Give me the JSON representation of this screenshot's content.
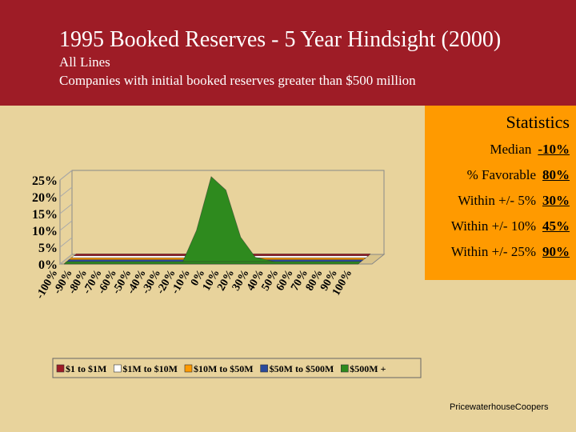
{
  "header": {
    "title": "1995 Booked Reserves - 5 Year Hindsight (2000)",
    "subtitle": "All Lines",
    "note": "Companies with initial booked reserves greater than $500 million"
  },
  "chart_data": {
    "type": "area",
    "categories": [
      "-100%",
      "-90%",
      "-80%",
      "-70%",
      "-60%",
      "-50%",
      "-40%",
      "-30%",
      "-20%",
      "-10%",
      "0%",
      "10%",
      "20%",
      "30%",
      "40%",
      "50%",
      "60%",
      "70%",
      "80%",
      "90%",
      "100%"
    ],
    "series": [
      {
        "name": "$1 to $1M",
        "color": "#9e1c26",
        "values": [
          0,
          0,
          0,
          0,
          0,
          0,
          0,
          0,
          0,
          0,
          0,
          0,
          0,
          0,
          0,
          0,
          0,
          0,
          0,
          0,
          0
        ]
      },
      {
        "name": "$1M to $10M",
        "color": "#ffffff",
        "values": [
          0,
          0,
          0,
          0,
          0,
          0,
          0,
          0,
          0,
          0,
          0,
          0,
          0,
          0,
          0,
          0,
          0,
          0,
          0,
          0,
          0
        ]
      },
      {
        "name": "$10M to $50M",
        "color": "#ff9a00",
        "values": [
          0,
          0,
          0,
          0,
          0,
          0,
          0,
          0,
          0,
          0,
          0,
          0,
          0,
          0,
          0,
          0,
          0,
          0,
          0,
          0,
          0
        ]
      },
      {
        "name": "$50M to $500M",
        "color": "#2a4a9c",
        "values": [
          0,
          0,
          0,
          0,
          0,
          0,
          0,
          0,
          0,
          0,
          0,
          0,
          0,
          0,
          0,
          0,
          0,
          0,
          0,
          0,
          0
        ]
      },
      {
        "name": "$500M +",
        "color": "#2e8a1e",
        "values": [
          0,
          0,
          0,
          0,
          0,
          0,
          0,
          0,
          0,
          10,
          26,
          22,
          8,
          2,
          1,
          0,
          0,
          0,
          0,
          0,
          0
        ]
      }
    ],
    "ylim": [
      0,
      25
    ],
    "yticks": [
      {
        "value": 0,
        "label": "0%"
      },
      {
        "value": 5,
        "label": "5%"
      },
      {
        "value": 10,
        "label": "10%"
      },
      {
        "value": 15,
        "label": "15%"
      },
      {
        "value": 20,
        "label": "20%"
      },
      {
        "value": 25,
        "label": "25%"
      }
    ]
  },
  "statistics": {
    "title": "Statistics",
    "rows": [
      [
        "Median",
        "-10%"
      ],
      [
        "% Favorable",
        "80%"
      ],
      [
        "Within +/- 5%",
        "30%"
      ],
      [
        "Within +/- 10%",
        "45%"
      ],
      [
        "Within +/- 25%",
        "90%"
      ]
    ]
  },
  "footer": "PricewaterhouseCoopers"
}
